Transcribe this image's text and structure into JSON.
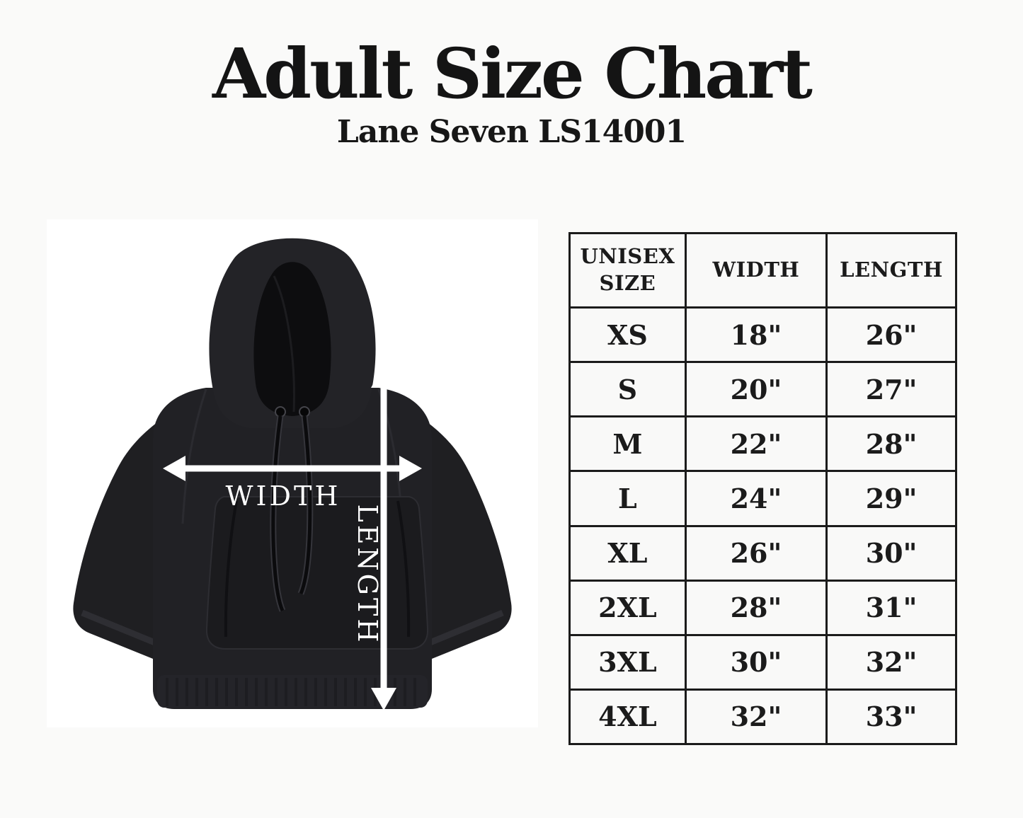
{
  "page": {
    "title": "Adult Size Chart",
    "subtitle": "Lane Seven LS14001"
  },
  "diagram": {
    "garment": "black pullover hoodie, front view",
    "width_label": "WIDTH",
    "length_label": "LENGTH",
    "arrow_color": "#ffffff",
    "panel_bg": "#ffffff",
    "hoodie_color": "#212125"
  },
  "size_table": {
    "columns": [
      "UNISEX SIZE",
      "WIDTH",
      "LENGTH"
    ],
    "rows": [
      {
        "size": "XS",
        "width": "18\"",
        "length": "26\""
      },
      {
        "size": "S",
        "width": "20\"",
        "length": "27\""
      },
      {
        "size": "M",
        "width": "22\"",
        "length": "28\""
      },
      {
        "size": "L",
        "width": "24\"",
        "length": "29\""
      },
      {
        "size": "XL",
        "width": "26\"",
        "length": "30\""
      },
      {
        "size": "2XL",
        "width": "28\"",
        "length": "31\""
      },
      {
        "size": "3XL",
        "width": "30\"",
        "length": "32\""
      },
      {
        "size": "4XL",
        "width": "32\"",
        "length": "33\""
      }
    ],
    "border_color": "#1b1b1b",
    "cell_bg": "#f9f9f8"
  },
  "chart_data": {
    "type": "table",
    "title": "Adult Size Chart",
    "subtitle": "Lane Seven LS14001",
    "columns": [
      "UNISEX SIZE",
      "WIDTH",
      "LENGTH"
    ],
    "rows": [
      [
        "XS",
        "18\"",
        "26\""
      ],
      [
        "S",
        "20\"",
        "27\""
      ],
      [
        "M",
        "22\"",
        "28\""
      ],
      [
        "L",
        "24\"",
        "29\""
      ],
      [
        "XL",
        "26\"",
        "30\""
      ],
      [
        "2XL",
        "28\"",
        "31\""
      ],
      [
        "3XL",
        "30\"",
        "32\""
      ],
      [
        "4XL",
        "32\"",
        "33\""
      ]
    ]
  }
}
